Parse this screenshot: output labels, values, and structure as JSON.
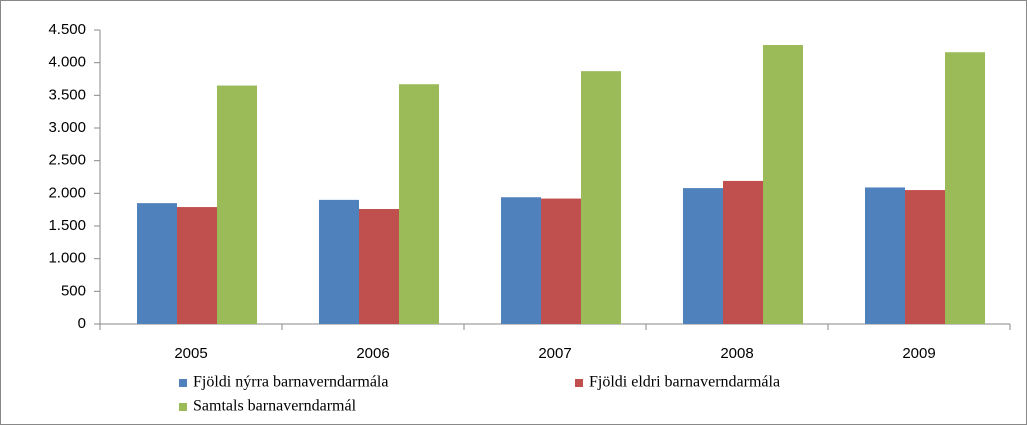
{
  "chart_data": {
    "type": "bar",
    "categories": [
      "2005",
      "2006",
      "2007",
      "2008",
      "2009"
    ],
    "series": [
      {
        "name": "Fjöldi nýrra barnaverndarmála",
        "color": "#4f81bd",
        "values": [
          1850,
          1900,
          1940,
          2080,
          2090
        ]
      },
      {
        "name": "Fjöldi eldri barnaverndarmála",
        "color": "#c0504d",
        "values": [
          1790,
          1760,
          1920,
          2190,
          2050
        ]
      },
      {
        "name": "Samtals barnaverndarmál",
        "color": "#9bbb59",
        "values": [
          3650,
          3670,
          3870,
          4270,
          4160
        ]
      }
    ],
    "ylim": [
      0,
      4500
    ],
    "yticks": [
      0,
      500,
      {
        "value": 1000,
        "label": "1.000"
      },
      {
        "value": 1500,
        "label": "1.500"
      },
      {
        "value": 2000,
        "label": "2.000"
      },
      {
        "value": 2500,
        "label": "2.500"
      },
      {
        "value": 3000,
        "label": "3.000"
      },
      {
        "value": 3500,
        "label": "3.500"
      },
      {
        "value": 4000,
        "label": "4.000"
      },
      {
        "value": 4500,
        "label": "4.500"
      }
    ],
    "grid": false,
    "legend": "bottom"
  }
}
